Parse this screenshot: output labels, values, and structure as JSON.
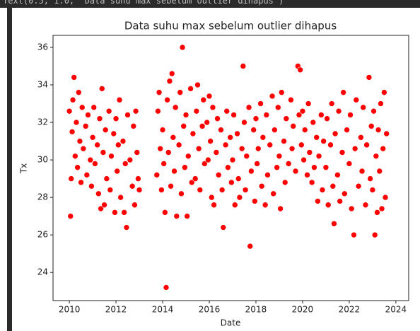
{
  "output_text": "Text(0.5, 1.0, 'Data suhu max sebelum outlier dihapus')",
  "chart_data": {
    "type": "scatter",
    "title": "Data suhu max sebelum outlier dihapus",
    "x_label": "Date",
    "y_label": "Tx",
    "color": "#ff0000",
    "xlim": [
      2009.3,
      2024.55
    ],
    "xticks": [
      2010,
      2012,
      2014,
      2016,
      2018,
      2020,
      2022,
      2024
    ],
    "ylim": [
      22.5,
      36.64
    ],
    "yticks": [
      24,
      26,
      28,
      30,
      32,
      34,
      36
    ],
    "x": [
      2010.0,
      2010.05,
      2010.08,
      2010.12,
      2010.15,
      2010.2,
      2010.25,
      2010.3,
      2010.35,
      2010.4,
      2010.45,
      2010.5,
      2010.55,
      2010.6,
      2010.7,
      2010.75,
      2010.8,
      2010.9,
      2010.95,
      2011.0,
      2011.05,
      2011.1,
      2011.2,
      2011.25,
      2011.3,
      2011.35,
      2011.4,
      2011.45,
      2011.5,
      2011.55,
      2011.6,
      2011.7,
      2011.75,
      2011.8,
      2011.9,
      2011.95,
      2012.0,
      2012.05,
      2012.1,
      2012.15,
      2012.2,
      2012.3,
      2012.35,
      2012.4,
      2012.45,
      2012.5,
      2012.6,
      2012.7,
      2012.75,
      2012.8,
      2012.85,
      2012.9,
      2012.95,
      2013.0,
      2013.75,
      2013.8,
      2013.85,
      2013.9,
      2013.95,
      2014.0,
      2014.05,
      2014.1,
      2014.15,
      2014.2,
      2014.25,
      2014.3,
      2014.35,
      2014.4,
      2014.45,
      2014.5,
      2014.55,
      2014.6,
      2014.7,
      2014.75,
      2014.8,
      2014.85,
      2014.9,
      2014.95,
      2015.0,
      2015.05,
      2015.1,
      2015.2,
      2015.25,
      2015.3,
      2015.4,
      2015.45,
      2015.5,
      2015.55,
      2015.6,
      2015.7,
      2015.75,
      2015.8,
      2015.9,
      2015.95,
      2016.0,
      2016.05,
      2016.1,
      2016.15,
      2016.2,
      2016.3,
      2016.35,
      2016.4,
      2016.5,
      2016.55,
      2016.6,
      2016.7,
      2016.75,
      2016.8,
      2016.9,
      2016.95,
      2017.0,
      2017.05,
      2017.1,
      2017.2,
      2017.25,
      2017.3,
      2017.4,
      2017.45,
      2017.5,
      2017.55,
      2017.6,
      2017.7,
      2017.75,
      2017.8,
      2017.9,
      2017.95,
      2018.0,
      2018.05,
      2018.1,
      2018.2,
      2018.25,
      2018.3,
      2018.4,
      2018.45,
      2018.5,
      2018.6,
      2018.7,
      2018.75,
      2018.8,
      2018.9,
      2018.95,
      2019.0,
      2019.05,
      2019.1,
      2019.2,
      2019.25,
      2019.3,
      2019.4,
      2019.5,
      2019.55,
      2019.6,
      2019.7,
      2019.8,
      2019.85,
      2019.9,
      2019.95,
      2020.0,
      2020.05,
      2020.1,
      2020.2,
      2020.25,
      2020.3,
      2020.4,
      2020.45,
      2020.5,
      2020.6,
      2020.65,
      2020.7,
      2020.8,
      2020.85,
      2020.9,
      2021.0,
      2021.05,
      2021.1,
      2021.2,
      2021.25,
      2021.3,
      2021.35,
      2021.4,
      2021.5,
      2021.55,
      2021.6,
      2021.7,
      2021.75,
      2021.8,
      2021.9,
      2022.0,
      2022.05,
      2022.1,
      2022.2,
      2022.25,
      2022.3,
      2022.4,
      2022.5,
      2022.55,
      2022.6,
      2022.7,
      2022.75,
      2022.85,
      2022.9,
      2022.95,
      2023.0,
      2023.05,
      2023.1,
      2023.15,
      2023.2,
      2023.25,
      2023.3,
      2023.35,
      2023.4,
      2023.45,
      2023.5,
      2023.55,
      2023.6
    ],
    "values": [
      32.6,
      27.0,
      29.0,
      31.5,
      33.2,
      34.4,
      30.2,
      32.0,
      29.6,
      33.6,
      31.0,
      28.8,
      32.8,
      30.6,
      31.8,
      29.2,
      32.4,
      30.0,
      28.6,
      31.2,
      32.8,
      29.8,
      30.8,
      28.2,
      32.2,
      27.4,
      33.8,
      30.4,
      27.6,
      31.6,
      29.0,
      32.6,
      28.4,
      30.2,
      31.4,
      27.2,
      32.2,
      29.4,
      30.8,
      33.2,
      28.0,
      31.0,
      27.2,
      29.8,
      26.4,
      32.4,
      30.0,
      28.6,
      31.8,
      27.6,
      32.6,
      30.4,
      29.0,
      28.4,
      29.2,
      32.6,
      33.6,
      30.6,
      28.4,
      31.6,
      29.8,
      27.2,
      23.2,
      33.2,
      30.4,
      34.2,
      28.6,
      34.6,
      31.2,
      29.4,
      32.8,
      27.0,
      30.8,
      33.6,
      28.2,
      36.0,
      31.8,
      29.6,
      32.4,
      27.0,
      30.2,
      33.8,
      28.8,
      31.4,
      29.0,
      32.6,
      34.0,
      30.6,
      28.4,
      31.8,
      33.2,
      29.8,
      32.0,
      30.0,
      33.4,
      31.0,
      28.0,
      32.8,
      27.6,
      30.4,
      32.2,
      29.2,
      31.6,
      28.4,
      26.4,
      30.8,
      32.6,
      29.6,
      31.2,
      28.8,
      30.0,
      32.4,
      27.6,
      31.4,
      29.0,
      28.0,
      30.6,
      35.0,
      32.0,
      28.4,
      30.2,
      32.8,
      25.4,
      29.4,
      31.6,
      27.8,
      32.2,
      29.8,
      30.6,
      33.0,
      28.6,
      31.2,
      27.6,
      32.4,
      29.2,
      30.8,
      33.4,
      28.2,
      31.6,
      29.6,
      32.8,
      30.2,
      27.4,
      33.6,
      31.0,
      28.8,
      32.2,
      29.8,
      33.2,
      30.6,
      31.8,
      29.4,
      35.0,
      32.4,
      34.8,
      30.8,
      32.6,
      30.0,
      31.6,
      29.2,
      33.0,
      30.4,
      28.8,
      32.0,
      29.6,
      31.2,
      27.8,
      30.2,
      32.4,
      28.4,
      31.0,
      29.6,
      32.2,
      27.6,
      30.8,
      33.0,
      28.6,
      26.6,
      31.4,
      29.2,
      32.6,
      27.8,
      30.4,
      33.6,
      28.2,
      31.6,
      29.8,
      32.4,
      27.4,
      26.0,
      30.6,
      33.2,
      28.6,
      31.2,
      29.4,
      32.8,
      27.6,
      30.8,
      34.4,
      29.0,
      31.8,
      28.4,
      32.6,
      26.0,
      30.2,
      27.2,
      31.6,
      29.4,
      33.0,
      27.4,
      30.6,
      33.6,
      28.0,
      31.4
    ]
  }
}
